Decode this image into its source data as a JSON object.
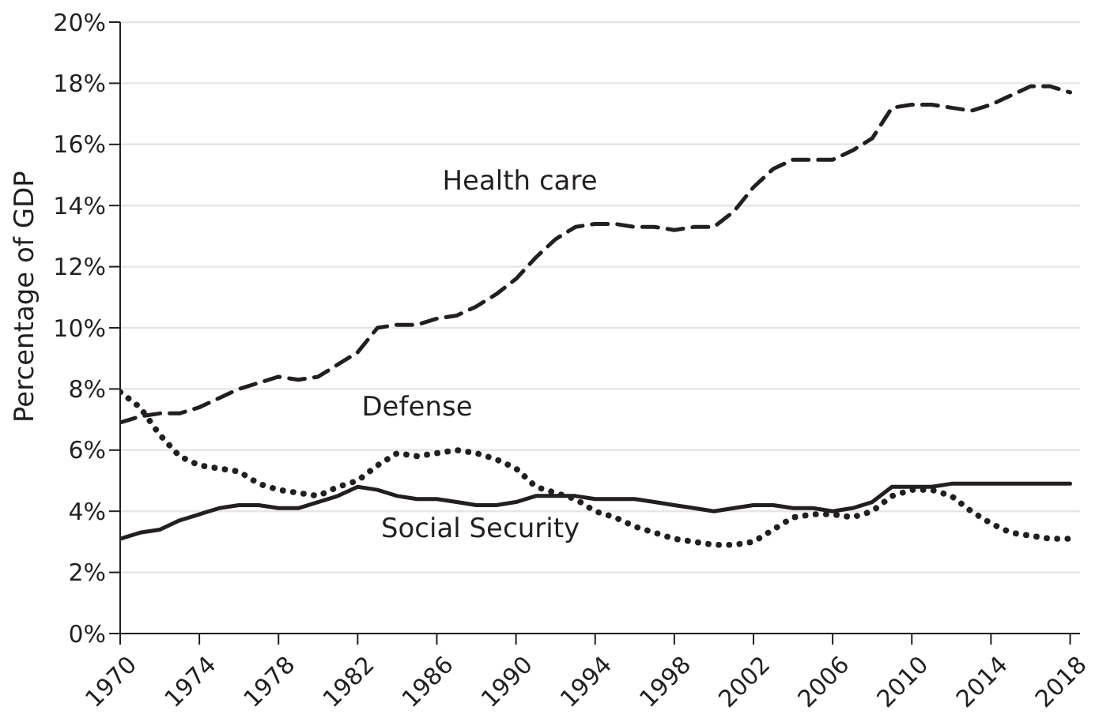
{
  "chart_data": {
    "type": "line",
    "ylabel": "Percentage of GDP",
    "x": [
      1970,
      1971,
      1972,
      1973,
      1974,
      1975,
      1976,
      1977,
      1978,
      1979,
      1980,
      1981,
      1982,
      1983,
      1984,
      1985,
      1986,
      1987,
      1988,
      1989,
      1990,
      1991,
      1992,
      1993,
      1994,
      1995,
      1996,
      1997,
      1998,
      1999,
      2000,
      2001,
      2002,
      2003,
      2004,
      2005,
      2006,
      2007,
      2008,
      2009,
      2010,
      2011,
      2012,
      2013,
      2014,
      2015,
      2016,
      2017,
      2018
    ],
    "series": [
      {
        "name": "Health care",
        "color": "#231f20",
        "line_style": "dashed",
        "values": [
          6.9,
          7.1,
          7.2,
          7.2,
          7.4,
          7.7,
          8.0,
          8.2,
          8.4,
          8.3,
          8.4,
          8.8,
          9.2,
          10.0,
          10.1,
          10.1,
          10.3,
          10.4,
          10.7,
          11.1,
          11.6,
          12.3,
          12.9,
          13.3,
          13.4,
          13.4,
          13.3,
          13.3,
          13.2,
          13.3,
          13.3,
          13.8,
          14.6,
          15.2,
          15.5,
          15.5,
          15.5,
          15.8,
          16.2,
          17.2,
          17.3,
          17.3,
          17.2,
          17.1,
          17.3,
          17.6,
          17.9,
          17.9,
          17.7
        ]
      },
      {
        "name": "Defense",
        "color": "#231f20",
        "line_style": "dotted",
        "values": [
          7.9,
          7.4,
          6.5,
          5.8,
          5.5,
          5.4,
          5.3,
          4.9,
          4.7,
          4.6,
          4.5,
          4.8,
          5.0,
          5.5,
          5.9,
          5.8,
          5.9,
          6.0,
          5.9,
          5.7,
          5.4,
          4.8,
          4.6,
          4.4,
          4.0,
          3.8,
          3.5,
          3.3,
          3.1,
          3.0,
          2.9,
          2.9,
          3.0,
          3.4,
          3.8,
          3.9,
          3.9,
          3.8,
          4.0,
          4.5,
          4.7,
          4.7,
          4.5,
          4.0,
          3.6,
          3.3,
          3.2,
          3.1,
          3.1
        ]
      },
      {
        "name": "Social Security",
        "color": "#231f20",
        "line_style": "solid",
        "values": [
          3.1,
          3.3,
          3.4,
          3.7,
          3.9,
          4.1,
          4.2,
          4.2,
          4.1,
          4.1,
          4.3,
          4.5,
          4.8,
          4.7,
          4.5,
          4.4,
          4.4,
          4.3,
          4.2,
          4.2,
          4.3,
          4.5,
          4.5,
          4.5,
          4.4,
          4.4,
          4.4,
          4.3,
          4.2,
          4.1,
          4.0,
          4.1,
          4.2,
          4.2,
          4.1,
          4.1,
          4.0,
          4.1,
          4.3,
          4.8,
          4.8,
          4.8,
          4.9,
          4.9,
          4.9,
          4.9,
          4.9,
          4.9,
          4.9
        ]
      }
    ],
    "xlim": [
      1970,
      2018.5
    ],
    "xticks": [
      1970,
      1974,
      1978,
      1982,
      1986,
      1990,
      1994,
      1998,
      2002,
      2006,
      2010,
      2014,
      2018
    ],
    "ylim": [
      0,
      20
    ],
    "yticks": [
      {
        "value": 0,
        "label": "0%"
      },
      {
        "value": 2,
        "label": "2%"
      },
      {
        "value": 4,
        "label": "4%"
      },
      {
        "value": 6,
        "label": "6%"
      },
      {
        "value": 8,
        "label": "8%"
      },
      {
        "value": 10,
        "label": "10%"
      },
      {
        "value": 12,
        "label": "12%"
      },
      {
        "value": 14,
        "label": "14%"
      },
      {
        "value": 16,
        "label": "16%"
      },
      {
        "value": 18,
        "label": "18%"
      },
      {
        "value": 20,
        "label": "20%"
      }
    ],
    "grid": "y",
    "legend": false
  }
}
